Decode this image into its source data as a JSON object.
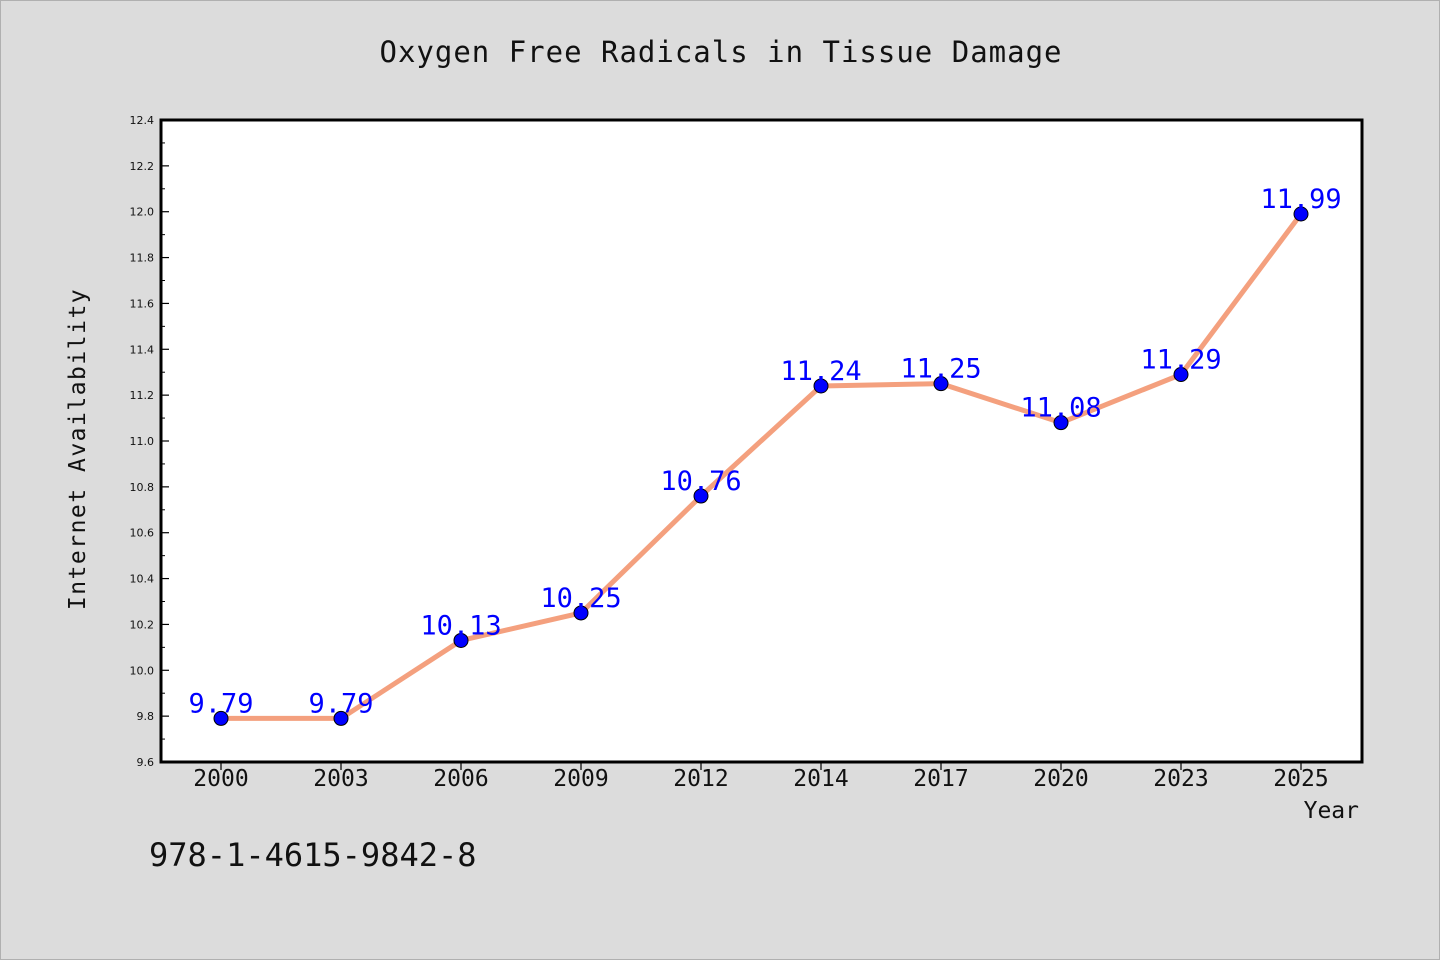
{
  "chart_data": {
    "type": "line",
    "title": "Oxygen Free Radicals in Tissue Damage",
    "xlabel": "Year",
    "ylabel": "Internet Availability",
    "categories": [
      "2000",
      "2003",
      "2006",
      "2009",
      "2012",
      "2014",
      "2017",
      "2020",
      "2023",
      "2025"
    ],
    "values": [
      9.79,
      9.79,
      10.13,
      10.25,
      10.76,
      11.24,
      11.25,
      11.08,
      11.29,
      11.99
    ],
    "data_labels": [
      "9.79",
      "9.79",
      "10.13",
      "10.25",
      "10.76",
      "11.24",
      "11.25",
      "11.08",
      "11.29",
      "11.99"
    ],
    "ylim": [
      9.6,
      12.4
    ],
    "y_ticks": [
      "9.6",
      "9.8",
      "10.0",
      "10.2",
      "10.4",
      "10.6",
      "10.8",
      "11.0",
      "11.2",
      "11.4",
      "11.6",
      "11.8",
      "12.0",
      "12.2",
      "12.4"
    ],
    "grid": false,
    "legend": "none",
    "colors": {
      "line": "#f4a07e",
      "marker": "#0000ff",
      "data_label": "#0000ff",
      "plot_background": "#ffffff",
      "figure_background": "#dcdcdc"
    }
  },
  "annotation": "978-1-4615-9842-8"
}
